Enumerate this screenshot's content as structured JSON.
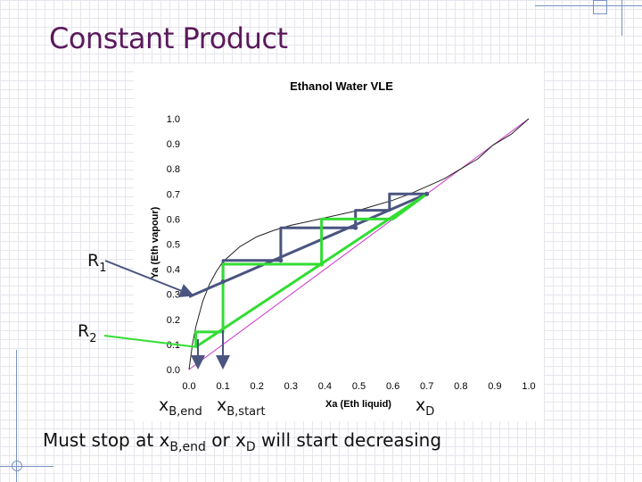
{
  "slide": {
    "title": "Constant Product",
    "bottom_text_main": "Must stop at x",
    "bottom_text_sub1": "B,end",
    "bottom_text_mid": " or x",
    "bottom_text_sub2": "D",
    "bottom_text_end": " will start decreasing"
  },
  "callouts": {
    "r1_main": "R",
    "r1_sub": "1",
    "r2_main": "R",
    "r2_sub": "2",
    "xb_end_main": "x",
    "xb_end_sub": "B,end",
    "xb_start_main": "x",
    "xb_start_sub": "B,start",
    "xd_main": "x",
    "xd_sub": "D"
  },
  "colors": {
    "title": "#5a1a5c",
    "eq_curve": "#222222",
    "diagonal": "#cc33cc",
    "r1": "#4a5580",
    "r2": "#33dd33",
    "arrow": "#4a5580"
  },
  "chart_data": {
    "type": "line",
    "title": "Ethanol Water VLE",
    "xlabel": "Xa (Eth liquid)",
    "ylabel": "Ya (Eth vapour)",
    "xlim": [
      0,
      1
    ],
    "ylim": [
      0,
      1
    ],
    "xticks": [
      "0.0",
      "0.1",
      "0.2",
      "0.3",
      "0.4",
      "0.5",
      "0.6",
      "0.7",
      "0.8",
      "0.9",
      "1.0"
    ],
    "yticks": [
      "0.0",
      "0.1",
      "0.2",
      "0.3",
      "0.4",
      "0.5",
      "0.6",
      "0.7",
      "0.8",
      "0.9",
      "1.0"
    ],
    "series": [
      {
        "key": "equilibrium",
        "x": [
          0,
          0.01,
          0.02,
          0.04,
          0.06,
          0.08,
          0.1,
          0.15,
          0.2,
          0.25,
          0.3,
          0.35,
          0.4,
          0.45,
          0.5,
          0.55,
          0.6,
          0.65,
          0.7,
          0.75,
          0.8,
          0.85,
          0.894,
          0.95,
          1.0
        ],
        "y": [
          0,
          0.1,
          0.17,
          0.27,
          0.34,
          0.39,
          0.43,
          0.49,
          0.53,
          0.555,
          0.575,
          0.59,
          0.605,
          0.62,
          0.635,
          0.655,
          0.675,
          0.7,
          0.73,
          0.76,
          0.8,
          0.84,
          0.894,
          0.94,
          1.0
        ]
      },
      {
        "key": "diagonal",
        "x": [
          0,
          1
        ],
        "y": [
          0,
          1
        ]
      },
      {
        "key": "r1_operating",
        "x": [
          0,
          0.7
        ],
        "y": [
          0.29,
          0.7
        ]
      },
      {
        "key": "r1_steps",
        "x": [
          0.7,
          0.59,
          0.59,
          0.49,
          0.49,
          0.27,
          0.27,
          0.1,
          0.1
        ],
        "y": [
          0.7,
          0.7,
          0.635,
          0.635,
          0.565,
          0.565,
          0.435,
          0.435,
          0.35
        ]
      },
      {
        "key": "r2_operating",
        "x": [
          0.02,
          0.7
        ],
        "y": [
          0.09,
          0.7
        ]
      },
      {
        "key": "r2_steps",
        "x": [
          0.7,
          0.6,
          0.6,
          0.39,
          0.39,
          0.1,
          0.1,
          0.02,
          0.02
        ],
        "y": [
          0.7,
          0.6,
          0.6,
          0.6,
          0.42,
          0.42,
          0.15,
          0.15,
          0.09
        ]
      }
    ]
  }
}
